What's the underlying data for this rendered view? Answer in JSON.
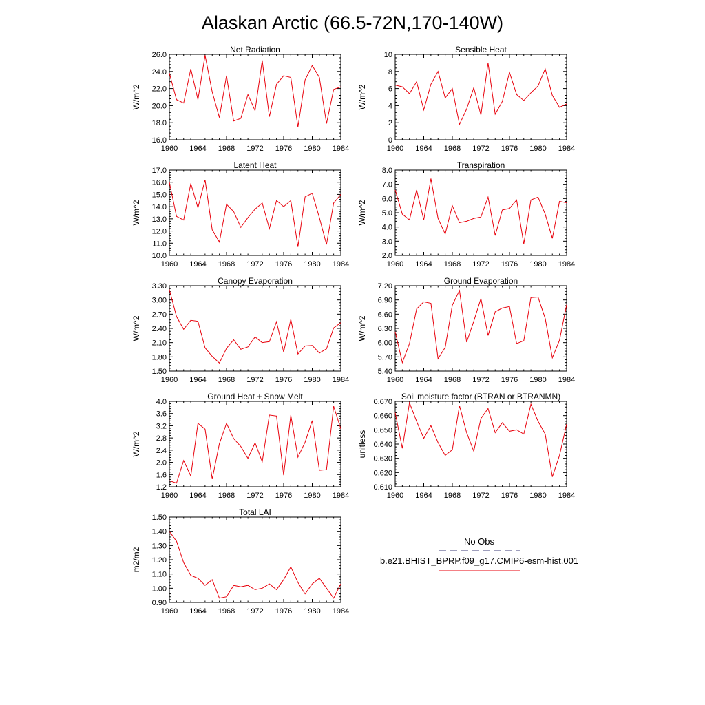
{
  "figure": {
    "title": "Alaskan Arctic (66.5-72N,170-140W)"
  },
  "legend": {
    "obs_label": "No Obs",
    "model_label": "b.e21.BHIST_BPRP.f09_g17.CMIP6-esm-hist.001",
    "obs_style": "dashed",
    "model_color": "#e8000b"
  },
  "chart_data": [
    {
      "type": "line",
      "title": "Net Radiation",
      "ylabel": "W/m^2",
      "ylim": [
        16.0,
        26.0
      ],
      "yticks": [
        "16.0",
        "18.0",
        "20.0",
        "22.0",
        "24.0",
        "26.0"
      ],
      "xlim": [
        1960,
        1984
      ],
      "xticks": [
        "1960",
        "1964",
        "1968",
        "1972",
        "1976",
        "1980",
        "1984"
      ],
      "x": [
        1960,
        1961,
        1962,
        1963,
        1964,
        1965,
        1966,
        1967,
        1968,
        1969,
        1970,
        1971,
        1972,
        1973,
        1974,
        1975,
        1976,
        1977,
        1978,
        1979,
        1980,
        1981,
        1982,
        1983,
        1984
      ],
      "series": [
        {
          "name": "b.e21.BHIST_BPRP.f09_g17.CMIP6-esm-hist.001",
          "color": "#e8000b",
          "values": [
            23.8,
            20.7,
            20.3,
            24.3,
            20.7,
            25.9,
            21.6,
            18.6,
            23.5,
            18.2,
            18.5,
            21.3,
            19.4,
            25.3,
            18.7,
            22.5,
            23.5,
            23.3,
            17.5,
            23.0,
            24.7,
            23.3,
            17.9,
            21.9,
            22.2
          ]
        }
      ]
    },
    {
      "type": "line",
      "title": "Sensible Heat",
      "ylabel": "W/m^2",
      "ylim": [
        0,
        10
      ],
      "yticks": [
        "0",
        "2",
        "4",
        "6",
        "8",
        "10"
      ],
      "xlim": [
        1960,
        1984
      ],
      "xticks": [
        "1960",
        "1964",
        "1968",
        "1972",
        "1976",
        "1980",
        "1984"
      ],
      "x": [
        1960,
        1961,
        1962,
        1963,
        1964,
        1965,
        1966,
        1967,
        1968,
        1969,
        1970,
        1971,
        1972,
        1973,
        1974,
        1975,
        1976,
        1977,
        1978,
        1979,
        1980,
        1981,
        1982,
        1983,
        1984
      ],
      "series": [
        {
          "name": "b.e21.BHIST_BPRP.f09_g17.CMIP6-esm-hist.001",
          "color": "#e8000b",
          "values": [
            6.4,
            6.2,
            5.4,
            6.8,
            3.5,
            6.5,
            8.0,
            4.9,
            6.0,
            1.8,
            3.6,
            6.1,
            2.9,
            9.0,
            3.0,
            4.5,
            7.9,
            5.3,
            4.6,
            5.5,
            6.3,
            8.3,
            5.2,
            3.8,
            4.2
          ]
        }
      ]
    },
    {
      "type": "line",
      "title": "Latent Heat",
      "ylabel": "W/m^2",
      "ylim": [
        10.0,
        17.0
      ],
      "yticks": [
        "10.0",
        "11.0",
        "12.0",
        "13.0",
        "14.0",
        "15.0",
        "16.0",
        "17.0"
      ],
      "xlim": [
        1960,
        1984
      ],
      "xticks": [
        "1960",
        "1964",
        "1968",
        "1972",
        "1976",
        "1980",
        "1984"
      ],
      "x": [
        1960,
        1961,
        1962,
        1963,
        1964,
        1965,
        1966,
        1967,
        1968,
        1969,
        1970,
        1971,
        1972,
        1973,
        1974,
        1975,
        1976,
        1977,
        1978,
        1979,
        1980,
        1981,
        1982,
        1983,
        1984
      ],
      "series": [
        {
          "name": "b.e21.BHIST_BPRP.f09_g17.CMIP6-esm-hist.001",
          "color": "#e8000b",
          "values": [
            16.0,
            13.2,
            12.9,
            15.9,
            13.9,
            16.2,
            12.1,
            11.1,
            14.2,
            13.6,
            12.3,
            13.1,
            13.8,
            14.3,
            12.2,
            14.5,
            14.0,
            14.5,
            10.7,
            14.8,
            15.1,
            13.1,
            10.9,
            14.3,
            15.0
          ]
        }
      ]
    },
    {
      "type": "line",
      "title": "Transpiration",
      "ylabel": "W/m^2",
      "ylim": [
        2.0,
        8.0
      ],
      "yticks": [
        "2.0",
        "3.0",
        "4.0",
        "5.0",
        "6.0",
        "7.0",
        "8.0"
      ],
      "xlim": [
        1960,
        1984
      ],
      "xticks": [
        "1960",
        "1964",
        "1968",
        "1972",
        "1976",
        "1980",
        "1984"
      ],
      "x": [
        1960,
        1961,
        1962,
        1963,
        1964,
        1965,
        1966,
        1967,
        1968,
        1969,
        1970,
        1971,
        1972,
        1973,
        1974,
        1975,
        1976,
        1977,
        1978,
        1979,
        1980,
        1981,
        1982,
        1983,
        1984
      ],
      "series": [
        {
          "name": "b.e21.BHIST_BPRP.f09_g17.CMIP6-esm-hist.001",
          "color": "#e8000b",
          "values": [
            6.6,
            4.9,
            4.5,
            6.6,
            4.5,
            7.4,
            4.6,
            3.5,
            5.5,
            4.3,
            4.4,
            4.6,
            4.7,
            6.1,
            3.4,
            5.2,
            5.3,
            5.9,
            2.8,
            5.9,
            6.1,
            4.9,
            3.2,
            5.8,
            5.7
          ]
        }
      ]
    },
    {
      "type": "line",
      "title": "Canopy Evaporation",
      "ylabel": "W/m^2",
      "ylim": [
        1.5,
        3.3
      ],
      "yticks": [
        "1.50",
        "1.80",
        "2.10",
        "2.40",
        "2.70",
        "3.00",
        "3.30"
      ],
      "xlim": [
        1960,
        1984
      ],
      "xticks": [
        "1960",
        "1964",
        "1968",
        "1972",
        "1976",
        "1980",
        "1984"
      ],
      "x": [
        1960,
        1961,
        1962,
        1963,
        1964,
        1965,
        1966,
        1967,
        1968,
        1969,
        1970,
        1971,
        1972,
        1973,
        1974,
        1975,
        1976,
        1977,
        1978,
        1979,
        1980,
        1981,
        1982,
        1983,
        1984
      ],
      "series": [
        {
          "name": "b.e21.BHIST_BPRP.f09_g17.CMIP6-esm-hist.001",
          "color": "#e8000b",
          "values": [
            3.22,
            2.65,
            2.38,
            2.57,
            2.55,
            1.99,
            1.81,
            1.67,
            1.98,
            2.16,
            1.96,
            2.01,
            2.22,
            2.1,
            2.12,
            2.54,
            1.9,
            2.59,
            1.86,
            2.03,
            2.04,
            1.88,
            1.97,
            2.41,
            2.52
          ]
        }
      ]
    },
    {
      "type": "line",
      "title": "Ground Evaporation",
      "ylabel": "W/m^2",
      "ylim": [
        5.4,
        7.2
      ],
      "yticks": [
        "5.40",
        "5.70",
        "6.00",
        "6.30",
        "6.60",
        "6.90",
        "7.20"
      ],
      "xlim": [
        1960,
        1984
      ],
      "xticks": [
        "1960",
        "1964",
        "1968",
        "1972",
        "1976",
        "1980",
        "1984"
      ],
      "x": [
        1960,
        1961,
        1962,
        1963,
        1964,
        1965,
        1966,
        1967,
        1968,
        1969,
        1970,
        1971,
        1972,
        1973,
        1974,
        1975,
        1976,
        1977,
        1978,
        1979,
        1980,
        1981,
        1982,
        1983,
        1984
      ],
      "series": [
        {
          "name": "b.e21.BHIST_BPRP.f09_g17.CMIP6-esm-hist.001",
          "color": "#e8000b",
          "values": [
            6.23,
            5.58,
            5.98,
            6.71,
            6.86,
            6.83,
            5.66,
            5.9,
            6.79,
            7.1,
            6.01,
            6.45,
            6.93,
            6.15,
            6.65,
            6.73,
            6.76,
            5.98,
            6.04,
            6.95,
            6.96,
            6.51,
            5.68,
            6.05,
            6.8
          ]
        }
      ]
    },
    {
      "type": "line",
      "title": "Ground Heat + Snow Melt",
      "ylabel": "W/m^2",
      "ylim": [
        1.2,
        4.0
      ],
      "yticks": [
        "1.2",
        "1.6",
        "2.0",
        "2.4",
        "2.8",
        "3.2",
        "3.6",
        "4.0"
      ],
      "xlim": [
        1960,
        1984
      ],
      "xticks": [
        "1960",
        "1964",
        "1968",
        "1972",
        "1976",
        "1980",
        "1984"
      ],
      "x": [
        1960,
        1961,
        1962,
        1963,
        1964,
        1965,
        1966,
        1967,
        1968,
        1969,
        1970,
        1971,
        1972,
        1973,
        1974,
        1975,
        1976,
        1977,
        1978,
        1979,
        1980,
        1981,
        1982,
        1983,
        1984
      ],
      "series": [
        {
          "name": "b.e21.BHIST_BPRP.f09_g17.CMIP6-esm-hist.001",
          "color": "#e8000b",
          "values": [
            1.4,
            1.32,
            2.06,
            1.55,
            3.28,
            3.09,
            1.45,
            2.61,
            3.28,
            2.78,
            2.52,
            2.13,
            2.64,
            2.02,
            3.55,
            3.52,
            1.58,
            3.55,
            2.17,
            2.66,
            3.37,
            1.74,
            1.76,
            3.84,
            3.1
          ]
        }
      ]
    },
    {
      "type": "line",
      "title": "Soil moisture factor (BTRAN or BTRANMN)",
      "ylabel": "unitless",
      "ylim": [
        0.61,
        0.67
      ],
      "yticks": [
        "0.610",
        "0.620",
        "0.630",
        "0.640",
        "0.650",
        "0.660",
        "0.670"
      ],
      "xlim": [
        1960,
        1984
      ],
      "xticks": [
        "1960",
        "1964",
        "1968",
        "1972",
        "1976",
        "1980",
        "1984"
      ],
      "x": [
        1960,
        1961,
        1962,
        1963,
        1964,
        1965,
        1966,
        1967,
        1968,
        1969,
        1970,
        1971,
        1972,
        1973,
        1974,
        1975,
        1976,
        1977,
        1978,
        1979,
        1980,
        1981,
        1982,
        1983,
        1984
      ],
      "series": [
        {
          "name": "b.e21.BHIST_BPRP.f09_g17.CMIP6-esm-hist.001",
          "color": "#e8000b",
          "values": [
            0.662,
            0.637,
            0.669,
            0.656,
            0.644,
            0.653,
            0.641,
            0.632,
            0.636,
            0.667,
            0.648,
            0.635,
            0.658,
            0.665,
            0.648,
            0.655,
            0.649,
            0.65,
            0.647,
            0.668,
            0.656,
            0.647,
            0.617,
            0.632,
            0.654
          ]
        }
      ]
    },
    {
      "type": "line",
      "title": "Total LAI",
      "ylabel": "m2/m2",
      "ylim": [
        0.9,
        1.5
      ],
      "yticks": [
        "0.90",
        "1.00",
        "1.10",
        "1.20",
        "1.30",
        "1.40",
        "1.50"
      ],
      "xlim": [
        1960,
        1984
      ],
      "xticks": [
        "1960",
        "1964",
        "1968",
        "1972",
        "1976",
        "1980",
        "1984"
      ],
      "x": [
        1960,
        1961,
        1962,
        1963,
        1964,
        1965,
        1966,
        1967,
        1968,
        1969,
        1970,
        1971,
        1972,
        1973,
        1974,
        1975,
        1976,
        1977,
        1978,
        1979,
        1980,
        1981,
        1982,
        1983,
        1984
      ],
      "series": [
        {
          "name": "b.e21.BHIST_BPRP.f09_g17.CMIP6-esm-hist.001",
          "color": "#e8000b",
          "values": [
            1.4,
            1.33,
            1.18,
            1.09,
            1.07,
            1.02,
            1.06,
            0.93,
            0.94,
            1.02,
            1.01,
            1.02,
            0.99,
            1.0,
            1.03,
            0.99,
            1.06,
            1.15,
            1.04,
            0.96,
            1.03,
            1.07,
            1.0,
            0.93,
            1.03
          ]
        }
      ]
    }
  ]
}
